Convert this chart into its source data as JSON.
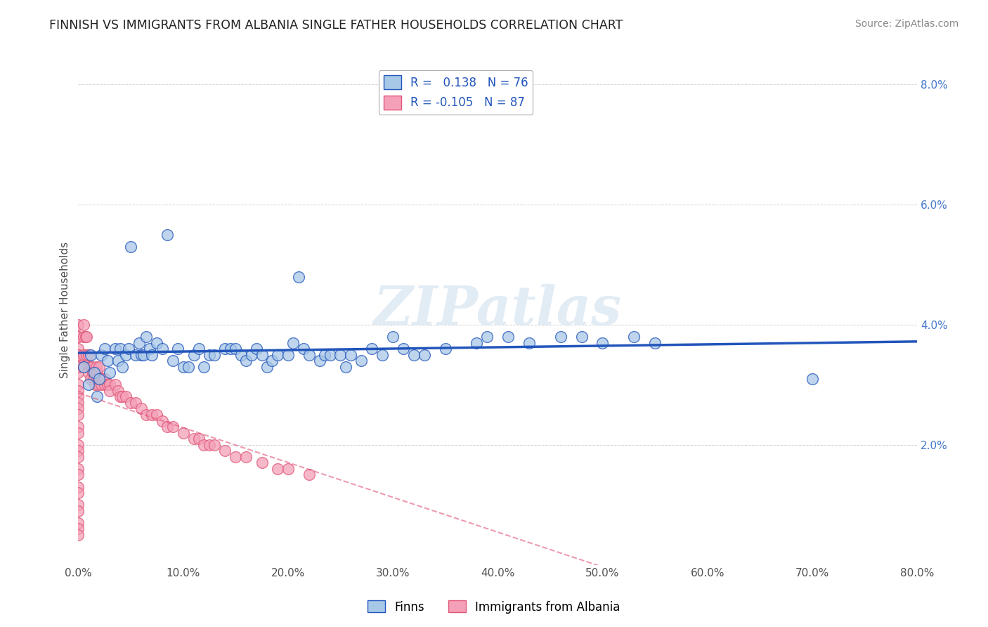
{
  "title": "FINNISH VS IMMIGRANTS FROM ALBANIA SINGLE FATHER HOUSEHOLDS CORRELATION CHART",
  "source": "Source: ZipAtlas.com",
  "ylabel": "Single Father Households",
  "legend_bottom": [
    "Finns",
    "Immigrants from Albania"
  ],
  "r_finns": 0.138,
  "n_finns": 76,
  "r_albania": -0.105,
  "n_albania": 87,
  "xlim": [
    0,
    0.8
  ],
  "ylim": [
    0,
    0.085
  ],
  "xticks": [
    0.0,
    0.1,
    0.2,
    0.3,
    0.4,
    0.5,
    0.6,
    0.7,
    0.8
  ],
  "yticks": [
    0.0,
    0.02,
    0.04,
    0.06,
    0.08
  ],
  "ytick_labels": [
    "",
    "2.0%",
    "4.0%",
    "6.0%",
    "8.0%"
  ],
  "xtick_labels": [
    "0.0%",
    "10.0%",
    "20.0%",
    "30.0%",
    "40.0%",
    "50.0%",
    "60.0%",
    "70.0%",
    "80.0%"
  ],
  "color_finns": "#a8c8e8",
  "color_albania": "#f4a0b8",
  "line_color_finns": "#2255bb",
  "line_color_albania": "#e05878",
  "watermark": "ZIPatlas",
  "finns_x": [
    0.005,
    0.01,
    0.012,
    0.015,
    0.018,
    0.02,
    0.022,
    0.025,
    0.028,
    0.03,
    0.035,
    0.038,
    0.04,
    0.042,
    0.045,
    0.048,
    0.05,
    0.055,
    0.058,
    0.06,
    0.062,
    0.065,
    0.068,
    0.07,
    0.075,
    0.08,
    0.085,
    0.09,
    0.095,
    0.1,
    0.105,
    0.11,
    0.115,
    0.12,
    0.125,
    0.13,
    0.14,
    0.145,
    0.15,
    0.155,
    0.16,
    0.165,
    0.17,
    0.175,
    0.18,
    0.185,
    0.19,
    0.2,
    0.205,
    0.21,
    0.215,
    0.22,
    0.23,
    0.235,
    0.24,
    0.25,
    0.255,
    0.26,
    0.27,
    0.28,
    0.29,
    0.3,
    0.31,
    0.32,
    0.33,
    0.35,
    0.38,
    0.39,
    0.41,
    0.43,
    0.46,
    0.48,
    0.5,
    0.53,
    0.55,
    0.7
  ],
  "finns_y": [
    0.033,
    0.03,
    0.035,
    0.032,
    0.028,
    0.031,
    0.035,
    0.036,
    0.034,
    0.032,
    0.036,
    0.034,
    0.036,
    0.033,
    0.035,
    0.036,
    0.053,
    0.035,
    0.037,
    0.035,
    0.035,
    0.038,
    0.036,
    0.035,
    0.037,
    0.036,
    0.055,
    0.034,
    0.036,
    0.033,
    0.033,
    0.035,
    0.036,
    0.033,
    0.035,
    0.035,
    0.036,
    0.036,
    0.036,
    0.035,
    0.034,
    0.035,
    0.036,
    0.035,
    0.033,
    0.034,
    0.035,
    0.035,
    0.037,
    0.048,
    0.036,
    0.035,
    0.034,
    0.035,
    0.035,
    0.035,
    0.033,
    0.035,
    0.034,
    0.036,
    0.035,
    0.038,
    0.036,
    0.035,
    0.035,
    0.036,
    0.037,
    0.038,
    0.038,
    0.037,
    0.038,
    0.038,
    0.037,
    0.038,
    0.037,
    0.031
  ],
  "albania_x": [
    0.0,
    0.0,
    0.0,
    0.0,
    0.0,
    0.0,
    0.0,
    0.0,
    0.0,
    0.0,
    0.0,
    0.0,
    0.0,
    0.0,
    0.0,
    0.0,
    0.0,
    0.0,
    0.0,
    0.0,
    0.0,
    0.0,
    0.0,
    0.0,
    0.0,
    0.0,
    0.0,
    0.0,
    0.0,
    0.0,
    0.005,
    0.005,
    0.005,
    0.005,
    0.007,
    0.008,
    0.008,
    0.01,
    0.01,
    0.01,
    0.012,
    0.012,
    0.013,
    0.014,
    0.015,
    0.016,
    0.017,
    0.018,
    0.018,
    0.019,
    0.02,
    0.02,
    0.022,
    0.022,
    0.023,
    0.025,
    0.025,
    0.028,
    0.03,
    0.03,
    0.035,
    0.038,
    0.04,
    0.042,
    0.045,
    0.05,
    0.055,
    0.06,
    0.065,
    0.07,
    0.075,
    0.08,
    0.085,
    0.09,
    0.1,
    0.11,
    0.115,
    0.12,
    0.125,
    0.13,
    0.14,
    0.15,
    0.16,
    0.175,
    0.19,
    0.2,
    0.22
  ],
  "albania_y": [
    0.038,
    0.036,
    0.035,
    0.034,
    0.033,
    0.032,
    0.03,
    0.029,
    0.028,
    0.027,
    0.026,
    0.025,
    0.023,
    0.022,
    0.02,
    0.019,
    0.018,
    0.016,
    0.015,
    0.013,
    0.012,
    0.01,
    0.009,
    0.007,
    0.006,
    0.005,
    0.04,
    0.038,
    0.035,
    0.033,
    0.04,
    0.038,
    0.035,
    0.033,
    0.038,
    0.038,
    0.035,
    0.035,
    0.033,
    0.032,
    0.033,
    0.031,
    0.033,
    0.032,
    0.031,
    0.03,
    0.033,
    0.032,
    0.031,
    0.03,
    0.033,
    0.031,
    0.031,
    0.03,
    0.031,
    0.03,
    0.031,
    0.03,
    0.03,
    0.029,
    0.03,
    0.029,
    0.028,
    0.028,
    0.028,
    0.027,
    0.027,
    0.026,
    0.025,
    0.025,
    0.025,
    0.024,
    0.023,
    0.023,
    0.022,
    0.021,
    0.021,
    0.02,
    0.02,
    0.02,
    0.019,
    0.018,
    0.018,
    0.017,
    0.016,
    0.016,
    0.015
  ]
}
